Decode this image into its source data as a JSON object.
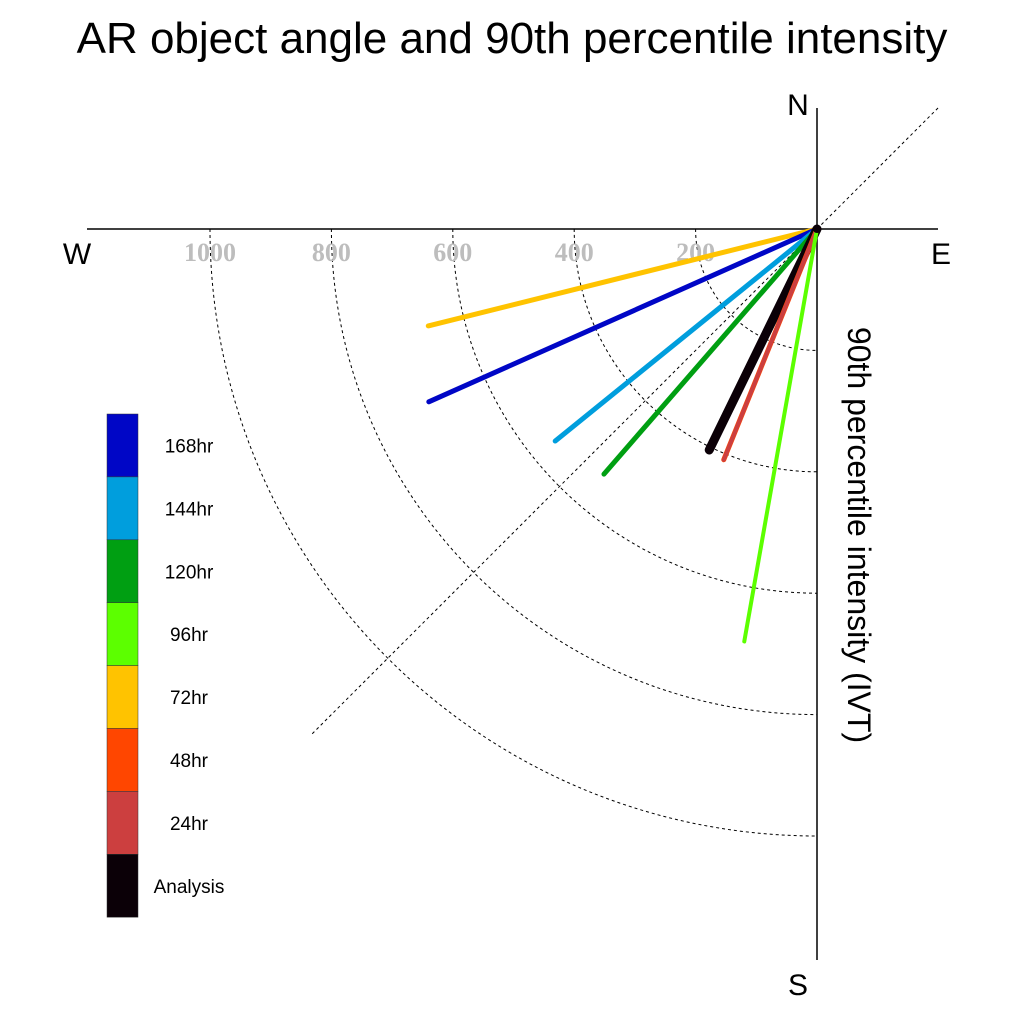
{
  "title": "AR object angle and 90th percentile intensity",
  "chart_data": {
    "type": "polar-vector",
    "title": "AR object angle and 90th percentile intensity",
    "ylabel": "90th percentile intensity (IVT)",
    "compass": {
      "north": "N",
      "south": "S",
      "east": "E",
      "west": "W"
    },
    "radial_ticks": [
      "1000",
      "800",
      "600",
      "400",
      "200"
    ],
    "radial_values": [
      1000,
      800,
      600,
      400,
      200
    ],
    "rmax": 1200,
    "ring_values": [
      200,
      400,
      600,
      800,
      1000
    ],
    "reference_angle_deg": 45,
    "series": [
      {
        "name": "72hr",
        "color": "#ffc300",
        "angle_deg": 14,
        "intensity": 660,
        "width": 5
      },
      {
        "name": "168hr",
        "color": "#0006c6",
        "angle_deg": 24,
        "intensity": 700,
        "width": 5
      },
      {
        "name": "144hr",
        "color": "#009edd",
        "angle_deg": 39,
        "intensity": 555,
        "width": 5
      },
      {
        "name": "120hr",
        "color": "#009f12",
        "angle_deg": 49,
        "intensity": 535,
        "width": 5
      },
      {
        "name": "Analysis",
        "color": "#0b0007",
        "angle_deg": 64,
        "intensity": 405,
        "width": 9
      },
      {
        "name": "48hr",
        "color": "#ff4600",
        "angle_deg": 68,
        "intensity": 410,
        "width": 5
      },
      {
        "name": "24hr",
        "color": "#cc3f3f",
        "angle_deg": 68,
        "intensity": 410,
        "width": 4
      },
      {
        "name": "96hr",
        "color": "#5cff00",
        "angle_deg": 80,
        "intensity": 690,
        "width": 4
      }
    ],
    "legend": [
      {
        "label": "168hr",
        "color": "#0006c6"
      },
      {
        "label": "144hr",
        "color": "#009edd"
      },
      {
        "label": "120hr",
        "color": "#009f12"
      },
      {
        "label": "96hr",
        "color": "#5cff00"
      },
      {
        "label": "72hr",
        "color": "#ffc300"
      },
      {
        "label": "48hr",
        "color": "#ff4600"
      },
      {
        "label": "24hr",
        "color": "#cc3f3f"
      },
      {
        "label": "Analysis",
        "color": "#0b0007"
      }
    ],
    "legend_placement": "left"
  }
}
